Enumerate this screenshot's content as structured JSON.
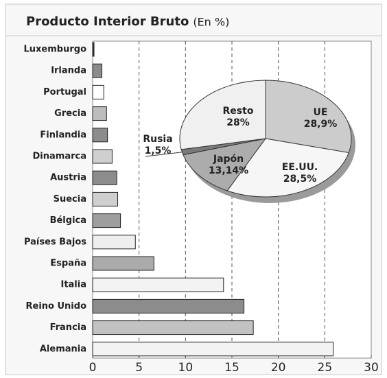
{
  "chart_data": [
    {
      "type": "barh",
      "title": "Producto Interior Bruto",
      "subtitle": "(En %)",
      "categories": [
        "Luxemburgo",
        "Irlanda",
        "Portugal",
        "Grecia",
        "Finlandia",
        "Dinamarca",
        "Austria",
        "Suecia",
        "Bélgica",
        "Países Bajos",
        "España",
        "Italia",
        "Reino Unido",
        "Francia",
        "Alemania"
      ],
      "values": [
        0.15,
        1.0,
        1.2,
        1.5,
        1.6,
        2.1,
        2.6,
        2.7,
        3.0,
        4.6,
        6.6,
        14.1,
        16.3,
        17.3,
        25.9
      ],
      "colors": [
        "#333333",
        "#8c8c8c",
        "#ffffff",
        "#bdbdbd",
        "#8c8c8c",
        "#cfcfcf",
        "#8c8c8c",
        "#cfcfcf",
        "#9e9e9e",
        "#eeeeee",
        "#ababab",
        "#f3f3f3",
        "#8c8c8c",
        "#c2c2c2",
        "#f3f3f3"
      ],
      "xlim": [
        0,
        30
      ],
      "xticks": [
        0,
        5,
        10,
        15,
        20,
        25,
        30
      ],
      "grid": true
    },
    {
      "type": "pie",
      "categories": [
        "UE",
        "EE.UU.",
        "Japón",
        "Rusia",
        "Resto"
      ],
      "values": [
        28.9,
        28.5,
        13.14,
        1.5,
        28
      ],
      "value_labels": [
        "28,9%",
        "28,5%",
        "13,14%",
        "1,5%",
        "28%"
      ],
      "colors": [
        "#cccccc",
        "#f6f6f6",
        "#acacac",
        "#7a7a7a",
        "#f0f0f0"
      ]
    }
  ]
}
